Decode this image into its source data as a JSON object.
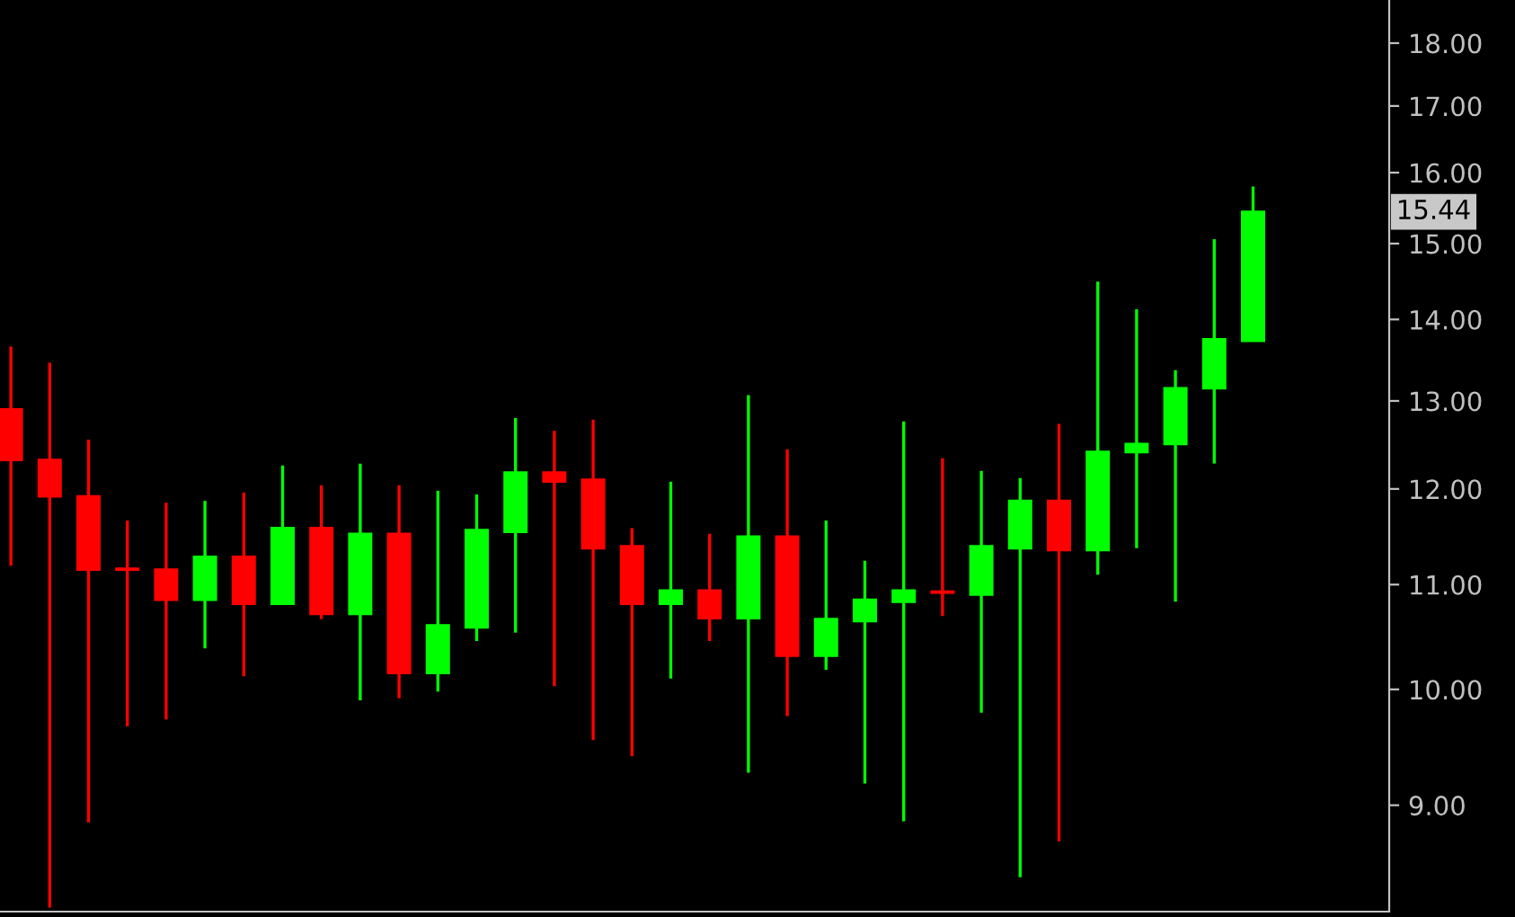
{
  "chart_data": {
    "type": "candlestick",
    "categories": [
      null,
      null,
      null,
      null,
      null,
      null,
      null,
      null,
      null,
      null,
      null,
      null,
      null,
      null,
      null,
      null,
      null,
      null,
      null,
      null,
      null,
      null,
      null,
      null,
      null,
      null,
      null,
      null,
      null,
      null,
      null,
      null,
      null
    ],
    "ohlc": [
      [
        12.9,
        13.66,
        11.19,
        12.32
      ],
      [
        12.32,
        13.46,
        8.2,
        11.92
      ],
      [
        11.92,
        12.55,
        8.86,
        11.15
      ],
      [
        11.16,
        11.66,
        9.67,
        11.15
      ],
      [
        11.15,
        11.85,
        9.73,
        10.85
      ],
      [
        10.85,
        11.87,
        10.38,
        11.28
      ],
      [
        11.28,
        11.96,
        10.12,
        10.81
      ],
      [
        10.81,
        12.26,
        10.81,
        11.58
      ],
      [
        11.58,
        12.04,
        10.66,
        10.71
      ],
      [
        10.71,
        12.28,
        9.9,
        11.52
      ],
      [
        11.52,
        12.04,
        9.92,
        10.15
      ],
      [
        10.15,
        11.98,
        9.98,
        10.6
      ],
      [
        10.58,
        11.94,
        10.45,
        11.56
      ],
      [
        11.54,
        12.8,
        10.53,
        12.18
      ],
      [
        12.18,
        12.65,
        10.03,
        12.08
      ],
      [
        12.1,
        12.78,
        9.55,
        11.37
      ],
      [
        11.39,
        11.58,
        9.41,
        10.81
      ],
      [
        10.81,
        12.08,
        10.1,
        10.94
      ],
      [
        10.94,
        11.52,
        10.45,
        10.67
      ],
      [
        10.67,
        13.07,
        9.27,
        11.49
      ],
      [
        11.49,
        12.44,
        9.76,
        10.31
      ],
      [
        10.31,
        11.66,
        10.18,
        10.66
      ],
      [
        10.64,
        11.24,
        9.18,
        10.85
      ],
      [
        10.83,
        12.76,
        8.87,
        10.94
      ],
      [
        10.93,
        12.34,
        10.69,
        10.92
      ],
      [
        10.9,
        12.2,
        9.79,
        11.39
      ],
      [
        11.37,
        12.12,
        8.43,
        11.87
      ],
      [
        11.87,
        12.73,
        8.71,
        11.35
      ],
      [
        11.35,
        14.49,
        11.1,
        12.41
      ],
      [
        12.41,
        14.13,
        11.37,
        12.5
      ],
      [
        12.5,
        13.37,
        10.83,
        13.15
      ],
      [
        13.15,
        15.06,
        12.28,
        13.75
      ],
      [
        13.73,
        15.8,
        13.73,
        15.44
      ]
    ],
    "colors": [
      "#ff0000",
      "#ff0000",
      "#ff0000",
      "#ff0000",
      "#ff0000",
      "#00ff00",
      "#ff0000",
      "#00ff00",
      "#ff0000",
      "#00ff00",
      "#ff0000",
      "#00ff00",
      "#00ff00",
      "#00ff00",
      "#ff0000",
      "#ff0000",
      "#ff0000",
      "#00ff00",
      "#ff0000",
      "#00ff00",
      "#ff0000",
      "#00ff00",
      "#00ff00",
      "#00ff00",
      "#ff0000",
      "#00ff00",
      "#00ff00",
      "#ff0000",
      "#00ff00",
      "#00ff00",
      "#00ff00",
      "#00ff00",
      "#00ff00"
    ],
    "log": true,
    "ylim": [
      8.17,
      18.72
    ],
    "yticks": [
      {
        "value": 9,
        "label": "9.00"
      },
      {
        "value": 10,
        "label": "10.00"
      },
      {
        "value": 11,
        "label": "11.00"
      },
      {
        "value": 12,
        "label": "12.00"
      },
      {
        "value": 13,
        "label": "13.00"
      },
      {
        "value": 14,
        "label": "14.00"
      },
      {
        "value": 15,
        "label": "15.00"
      },
      {
        "value": 16,
        "label": "16.00"
      },
      {
        "value": 17,
        "label": "17.00"
      },
      {
        "value": 18,
        "label": "18.00"
      }
    ],
    "annotations": [
      "15.44"
    ],
    "grid": false,
    "legend": false
  }
}
